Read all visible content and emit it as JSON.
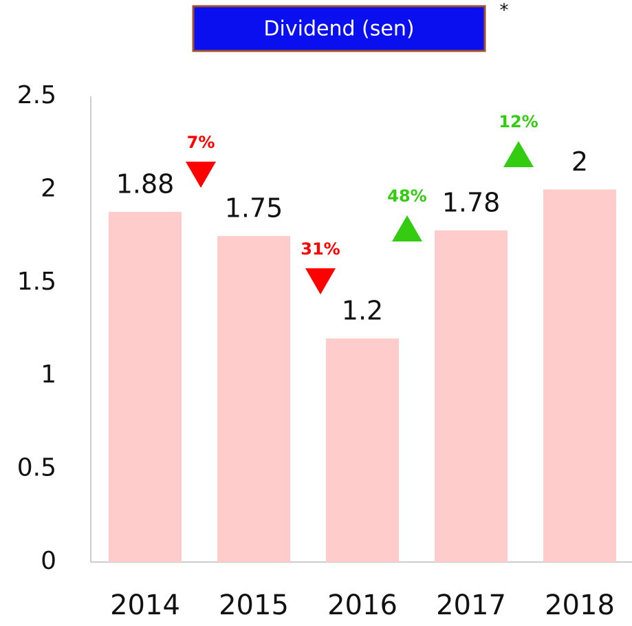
{
  "chart_data": {
    "type": "bar",
    "title": "Dividend (sen)",
    "note": "*",
    "categories": [
      "2014",
      "2015",
      "2016",
      "2017",
      "2018"
    ],
    "values": [
      1.88,
      1.75,
      1.2,
      1.78,
      2
    ],
    "color": "#ffcccc",
    "ylim": [
      0,
      2.5
    ],
    "yticks": [
      0,
      0.5,
      1,
      1.5,
      2,
      2.5
    ],
    "grid": false,
    "annotations": [
      {
        "value": 7,
        "label": "7%",
        "direction": "down",
        "color": "#ff0000"
      },
      {
        "value": 31,
        "label": "31%",
        "direction": "down",
        "color": "#ff0000"
      },
      {
        "value": 48,
        "label": "48%",
        "direction": "up",
        "color": "#33cc11"
      },
      {
        "value": 12,
        "label": "12%",
        "direction": "up",
        "color": "#33cc11"
      }
    ]
  }
}
